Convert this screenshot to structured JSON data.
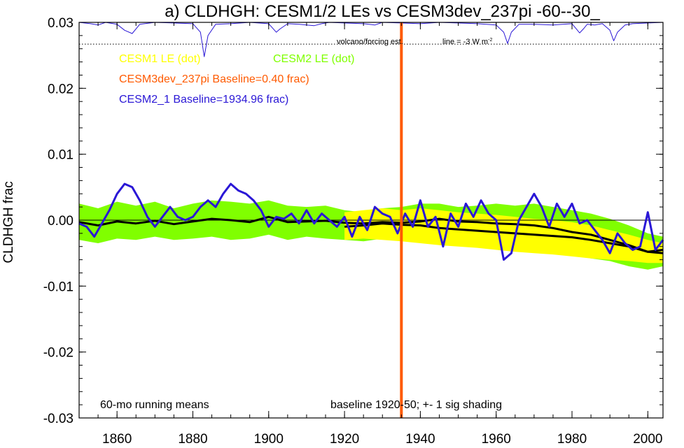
{
  "chart_data": {
    "type": "line",
    "title": "a) CLDHGH: CESM1/2 LEs vs CESM3dev_237pi -60--30_",
    "ylabel": "CLDHGH frac",
    "xlabel": "",
    "xlim": [
      1850,
      2004
    ],
    "ylim": [
      -0.03,
      0.03
    ],
    "x_ticks": [
      1860,
      1880,
      1900,
      1920,
      1940,
      1960,
      1980,
      2000
    ],
    "y_ticks": [
      {
        "value": 0.03,
        "label": "0.03"
      },
      {
        "value": 0.02,
        "label": "0.02"
      },
      {
        "value": 0.01,
        "label": "0.01"
      },
      {
        "value": 0.0,
        "label": "0.00"
      },
      {
        "value": -0.01,
        "label": "-0.01"
      },
      {
        "value": -0.02,
        "label": "-0.02"
      },
      {
        "value": -0.03,
        "label": "-0.03"
      }
    ],
    "grid": false,
    "legend": [
      {
        "label": "CESM1 LE (dot)",
        "color": "#ffff00"
      },
      {
        "label": "CESM2 LE (dot)",
        "color": "#80ff00"
      },
      {
        "label": "CESM3dev_237pi Baseline=0.40 frac)",
        "color": "#ff5a00"
      },
      {
        "label": "CESM2_1 Baseline=1934.96 frac)",
        "color": "#2a17d6"
      }
    ],
    "annotations": {
      "volcano": "volcano/forcing est.",
      "line_note": "line = -3 W m",
      "line_note_sup": "-2",
      "running_means": "60-mo running means",
      "baseline": "baseline 1920-50; +- 1 sig shading"
    },
    "vertical_line_year": 1935,
    "zero_line": 0.0,
    "dotted_line": 0.0267,
    "cesm2_le_band": {
      "x": [
        1850,
        1855,
        1860,
        1865,
        1870,
        1875,
        1880,
        1885,
        1890,
        1895,
        1900,
        1905,
        1910,
        1915,
        1920,
        1925,
        1930,
        1935,
        1940,
        1945,
        1950,
        1955,
        1960,
        1965,
        1970,
        1975,
        1980,
        1985,
        1990,
        1995,
        2000,
        2004
      ],
      "upper": [
        0.0025,
        0.0018,
        0.0028,
        0.0022,
        0.0028,
        0.0018,
        0.0025,
        0.003,
        0.0028,
        0.0025,
        0.003,
        0.0022,
        0.002,
        0.0022,
        0.0015,
        0.0012,
        0.0018,
        0.002,
        0.0025,
        0.0025,
        0.002,
        0.0022,
        0.0025,
        0.0022,
        0.0025,
        0.002,
        0.0015,
        0.001,
        0.0002,
        -0.0008,
        -0.002,
        -0.0025
      ],
      "lower": [
        -0.003,
        -0.0035,
        -0.0028,
        -0.003,
        -0.0025,
        -0.003,
        -0.0028,
        -0.0025,
        -0.003,
        -0.0028,
        -0.0022,
        -0.003,
        -0.0025,
        -0.0028,
        -0.003,
        -0.0032,
        -0.0028,
        -0.003,
        -0.0028,
        -0.003,
        -0.0035,
        -0.0038,
        -0.004,
        -0.0042,
        -0.0045,
        -0.0048,
        -0.0052,
        -0.0058,
        -0.0062,
        -0.007,
        -0.0075,
        -0.007
      ]
    },
    "cesm1_le_band": {
      "x": [
        1920,
        1925,
        1930,
        1935,
        1940,
        1945,
        1950,
        1955,
        1960,
        1965,
        1970,
        1975,
        1980,
        1985,
        1990,
        1995,
        2000,
        2004
      ],
      "upper": [
        0.0012,
        0.0015,
        0.0018,
        0.0015,
        0.0018,
        0.0015,
        0.0012,
        0.001,
        0.0008,
        0.0005,
        0.0002,
        0.0,
        -0.0003,
        -0.0008,
        -0.0015,
        -0.0022,
        -0.003,
        -0.0035
      ],
      "lower": [
        -0.003,
        -0.0028,
        -0.003,
        -0.0032,
        -0.0035,
        -0.0038,
        -0.004,
        -0.0042,
        -0.0045,
        -0.0048,
        -0.005,
        -0.0052,
        -0.0055,
        -0.0058,
        -0.006,
        -0.0062,
        -0.0065,
        -0.0065
      ]
    },
    "series": [
      {
        "name": "CESM2 LE",
        "color": "#000000",
        "x": [
          1850,
          1855,
          1860,
          1865,
          1870,
          1875,
          1880,
          1885,
          1890,
          1895,
          1900,
          1905,
          1910,
          1915,
          1920,
          1925,
          1930,
          1935,
          1940,
          1945,
          1950,
          1955,
          1960,
          1965,
          1970,
          1975,
          1980,
          1985,
          1990,
          1995,
          2000,
          2004
        ],
        "values": [
          -0.0003,
          -0.0008,
          -0.0002,
          -0.0005,
          -0.0001,
          -0.0006,
          -0.0002,
          0.0002,
          0.0,
          -0.0003,
          0.0005,
          -0.0003,
          -0.0002,
          -0.0001,
          -0.0004,
          -0.0005,
          -0.0003,
          -0.0004,
          -0.0002,
          0.0002,
          -0.0002,
          -0.0003,
          -0.0005,
          -0.0006,
          -0.0008,
          -0.0012,
          -0.0018,
          -0.0022,
          -0.003,
          -0.0038,
          -0.0048,
          -0.0045
        ]
      },
      {
        "name": "CESM1 LE",
        "color": "#000000",
        "x": [
          1920,
          1925,
          1930,
          1935,
          1940,
          1945,
          1950,
          1955,
          1960,
          1965,
          1970,
          1975,
          1980,
          1985,
          1990,
          1995,
          2000,
          2004
        ],
        "values": [
          -0.001,
          -0.0008,
          -0.0005,
          -0.0007,
          -0.0008,
          -0.0012,
          -0.0014,
          -0.0016,
          -0.0018,
          -0.002,
          -0.0022,
          -0.0024,
          -0.0026,
          -0.003,
          -0.0035,
          -0.004,
          -0.0048,
          -0.005
        ]
      },
      {
        "name": "CESM2_1",
        "color": "#2a17d6",
        "x": [
          1850,
          1852,
          1854,
          1856,
          1858,
          1860,
          1862,
          1864,
          1866,
          1868,
          1870,
          1872,
          1874,
          1876,
          1878,
          1880,
          1882,
          1884,
          1886,
          1888,
          1890,
          1892,
          1894,
          1896,
          1898,
          1900,
          1902,
          1904,
          1906,
          1908,
          1910,
          1912,
          1914,
          1916,
          1918,
          1920,
          1922,
          1924,
          1926,
          1928,
          1930,
          1932,
          1934,
          1936,
          1938,
          1940,
          1942,
          1944,
          1946,
          1948,
          1950,
          1952,
          1954,
          1956,
          1958,
          1960,
          1962,
          1964,
          1966,
          1968,
          1970,
          1972,
          1974,
          1976,
          1978,
          1980,
          1982,
          1984,
          1986,
          1988,
          1990,
          1992,
          1994,
          1996,
          1998,
          2000,
          2002,
          2004
        ],
        "values": [
          -0.0005,
          -0.001,
          -0.0025,
          -0.0005,
          0.0015,
          0.004,
          0.0055,
          0.005,
          0.003,
          0.0005,
          -0.001,
          0.0005,
          0.002,
          0.0005,
          0.0,
          0.0005,
          0.002,
          0.003,
          0.002,
          0.004,
          0.0055,
          0.0045,
          0.004,
          0.003,
          0.0015,
          -0.001,
          0.0005,
          0.0002,
          0.001,
          -0.0005,
          0.0015,
          -0.0005,
          0.001,
          0.0,
          -0.001,
          0.0005,
          -0.0025,
          0.0005,
          -0.0015,
          0.002,
          0.001,
          0.0005,
          -0.002,
          0.001,
          -0.001,
          0.003,
          -0.001,
          0.0005,
          -0.004,
          0.001,
          -0.001,
          0.0025,
          0.0005,
          0.003,
          0.001,
          0.0,
          -0.006,
          -0.005,
          0.0,
          0.002,
          0.004,
          0.002,
          -0.001,
          0.0025,
          0.0005,
          0.0025,
          -0.0005,
          0.0,
          -0.0015,
          -0.003,
          -0.005,
          -0.002,
          -0.0035,
          -0.0045,
          -0.004,
          0.0012,
          -0.0045,
          -0.003
        ]
      }
    ],
    "volcano_series": {
      "color": "#2a17d6",
      "x": [
        1850,
        1853,
        1855,
        1857,
        1860,
        1862,
        1864,
        1866,
        1870,
        1875,
        1880,
        1882,
        1883,
        1884,
        1886,
        1890,
        1895,
        1900,
        1902,
        1903,
        1905,
        1908,
        1912,
        1914,
        1916,
        1920,
        1925,
        1928,
        1930,
        1935,
        1940,
        1945,
        1950,
        1955,
        1960,
        1962,
        1963,
        1964,
        1966,
        1970,
        1975,
        1980,
        1982,
        1983,
        1984,
        1986,
        1988,
        1990,
        1991,
        1992,
        1994,
        1996,
        2000,
        2004
      ],
      "values": [
        0.03,
        0.0298,
        0.0296,
        0.03,
        0.0297,
        0.0288,
        0.0283,
        0.0297,
        0.03,
        0.0299,
        0.0298,
        0.0285,
        0.0248,
        0.028,
        0.0297,
        0.0298,
        0.03,
        0.0298,
        0.0285,
        0.029,
        0.0298,
        0.0297,
        0.0295,
        0.0298,
        0.03,
        0.0299,
        0.0298,
        0.0296,
        0.03,
        0.0299,
        0.0298,
        0.03,
        0.0299,
        0.0298,
        0.0296,
        0.0285,
        0.0268,
        0.0285,
        0.0297,
        0.0297,
        0.0296,
        0.0298,
        0.0284,
        0.029,
        0.0297,
        0.0296,
        0.0298,
        0.0288,
        0.0272,
        0.0285,
        0.0296,
        0.0298,
        0.0299,
        0.03
      ]
    }
  }
}
